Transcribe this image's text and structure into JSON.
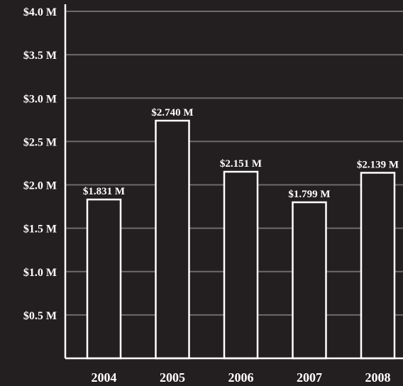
{
  "chart_data": {
    "type": "bar",
    "categories": [
      "2004",
      "2005",
      "2006",
      "2007",
      "2008"
    ],
    "values": [
      1.831,
      2.74,
      2.151,
      1.799,
      2.139
    ],
    "data_labels": [
      "$1.831 M",
      "$2.740 M",
      "$2.151 M",
      "$1.799 M",
      "$2.139 M"
    ],
    "y_ticks": [
      0.5,
      1.0,
      1.5,
      2.0,
      2.5,
      3.0,
      3.5,
      4.0
    ],
    "y_tick_labels": [
      "$0.5 M",
      "$1.0 M",
      "$1.5 M",
      "$2.0 M",
      "$2.5 M",
      "$3.0 M",
      "$3.5 M",
      "$4.0 M"
    ],
    "ylim": [
      0,
      4.0
    ],
    "grid": true,
    "title": "",
    "xlabel": "",
    "ylabel": ""
  },
  "colors": {
    "background": "#231f20",
    "bar_fill": "#231f20",
    "bar_stroke": "#ffffff",
    "gridline": "#6d6a6b",
    "axis": "#ffffff",
    "text": "#ffffff"
  }
}
